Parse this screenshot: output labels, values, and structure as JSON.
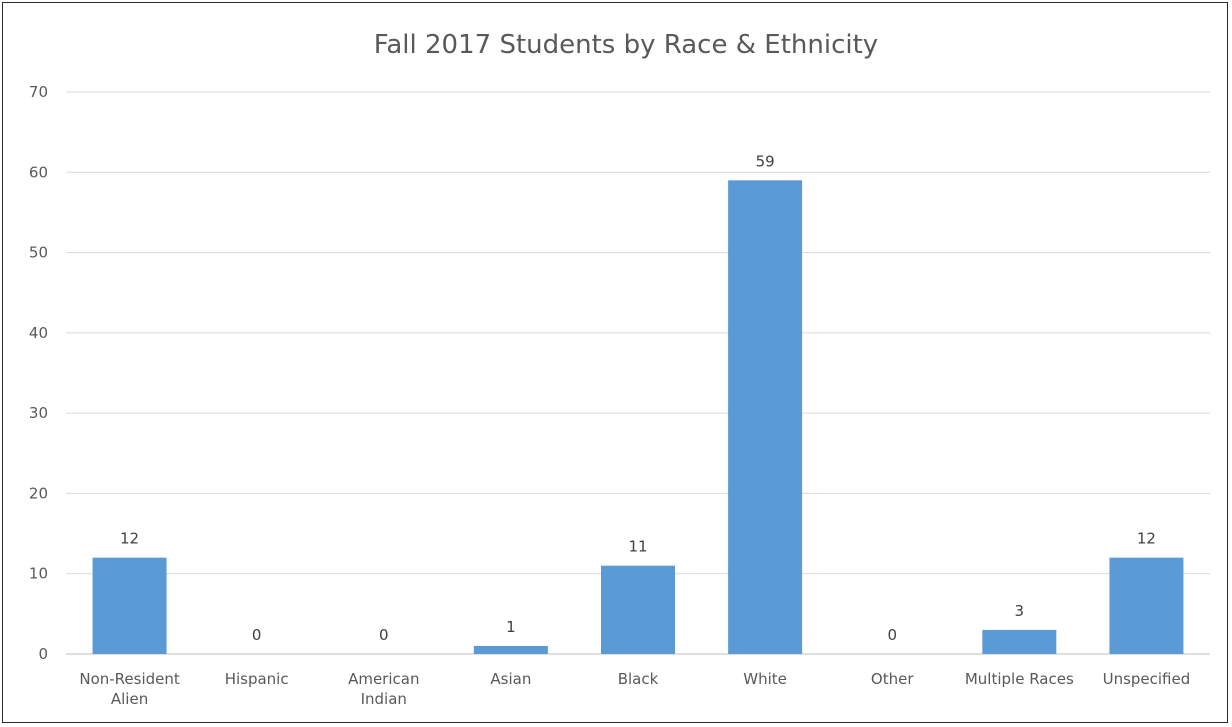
{
  "chart_data": {
    "type": "bar",
    "title": "Fall 2017 Students by Race & Ethnicity",
    "xlabel": "",
    "ylabel": "",
    "categories": [
      [
        "Non-Resident",
        "Alien"
      ],
      [
        "Hispanic"
      ],
      [
        "American",
        "Indian"
      ],
      [
        "Asian"
      ],
      [
        "Black"
      ],
      [
        "White"
      ],
      [
        "Other"
      ],
      [
        "Multiple Races"
      ],
      [
        "Unspecified"
      ]
    ],
    "values": [
      12,
      0,
      0,
      1,
      11,
      59,
      0,
      3,
      12
    ],
    "ylim": [
      0,
      70
    ],
    "yticks": [
      0,
      10,
      20,
      30,
      40,
      50,
      60,
      70
    ],
    "data_labels": true,
    "grid": true,
    "legend": "none",
    "bar_color": "#5B9BD5"
  }
}
